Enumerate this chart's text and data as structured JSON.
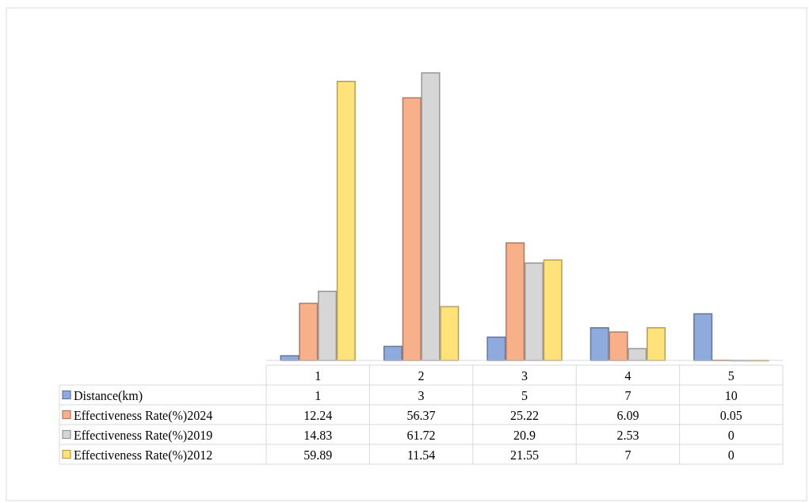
{
  "chart_data": {
    "type": "bar",
    "categories": [
      "1",
      "2",
      "3",
      "4",
      "5"
    ],
    "series": [
      {
        "name": "Distance(km)",
        "color": "#8faadc",
        "values": [
          1,
          3,
          5,
          7,
          10
        ]
      },
      {
        "name": "Effectiveness Rate(%)2024",
        "color": "#f8b08a",
        "values": [
          12.24,
          56.37,
          25.22,
          6.09,
          0.05
        ]
      },
      {
        "name": "Effectiveness Rate(%)2019",
        "color": "#d6d6d6",
        "values": [
          14.83,
          61.72,
          20.9,
          2.53,
          0
        ]
      },
      {
        "name": "Effectiveness Rate(%)2012",
        "color": "#ffe37a",
        "values": [
          59.89,
          11.54,
          21.55,
          7,
          0
        ]
      }
    ],
    "data_labels": true,
    "legend": "bottom"
  }
}
